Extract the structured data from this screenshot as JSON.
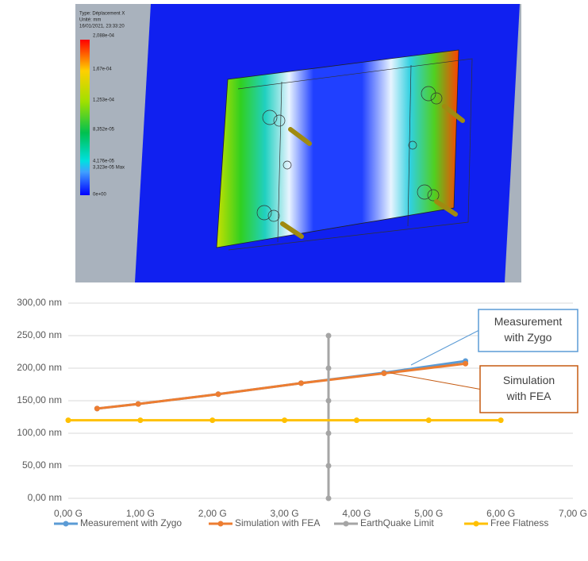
{
  "fea_legend": {
    "header": [
      "Type: Déplacement X",
      "Unité: mm",
      "16/01/2021, 23:33:20"
    ],
    "scale_labels": [
      "2,088e-04",
      "1,67e-04",
      "1,253e-04",
      "8,352e-05",
      "4,176e-05",
      "3,323e-05 Max",
      "0e+00"
    ]
  },
  "chart_data": {
    "type": "line",
    "series": [
      {
        "name": "Measurement with Zygo",
        "color": "#5b9bd5",
        "x": [
          0.4,
          0.97,
          2.08,
          3.23,
          4.38,
          5.51
        ],
        "values": [
          138,
          145,
          160,
          177,
          193,
          211
        ]
      },
      {
        "name": "Simulation with FEA",
        "color": "#ed7d31",
        "x": [
          0.4,
          0.97,
          2.08,
          3.23,
          4.38,
          5.51
        ],
        "values": [
          138,
          145,
          160,
          177,
          192,
          207
        ]
      },
      {
        "name": "EarthQuake Limit",
        "color": "#a5a5a5",
        "x": [
          3.61,
          3.61,
          3.61,
          3.61,
          3.61,
          3.61
        ],
        "values": [
          0,
          50,
          100,
          150,
          200,
          250
        ]
      },
      {
        "name": "Free Flatness",
        "color": "#ffc000",
        "x": [
          0,
          1,
          2,
          3,
          4,
          5,
          6
        ],
        "values": [
          120,
          120,
          120,
          120,
          120,
          120,
          120
        ]
      }
    ],
    "xlim": [
      0,
      7
    ],
    "xticks": [
      {
        "value": 0,
        "label": "0,00 G"
      },
      {
        "value": 1,
        "label": "1,00 G"
      },
      {
        "value": 2,
        "label": "2,00 G"
      },
      {
        "value": 3,
        "label": "3,00 G"
      },
      {
        "value": 4,
        "label": "4,00 G"
      },
      {
        "value": 5,
        "label": "5,00 G"
      },
      {
        "value": 6,
        "label": "6,00 G"
      },
      {
        "value": 7,
        "label": "7,00 G"
      }
    ],
    "ylim": [
      0,
      300
    ],
    "yticks": [
      {
        "value": 0,
        "label": "0,00 nm"
      },
      {
        "value": 50,
        "label": "50,00 nm"
      },
      {
        "value": 100,
        "label": "100,00 nm"
      },
      {
        "value": 150,
        "label": "150,00 nm"
      },
      {
        "value": 200,
        "label": "200,00 nm"
      },
      {
        "value": 250,
        "label": "250,00 nm"
      },
      {
        "value": 300,
        "label": "300,00 nm"
      }
    ],
    "grid": true,
    "legend": "bottom",
    "annotations": [
      {
        "lines": [
          "Measurement",
          "with Zygo"
        ],
        "color": "#5b9bd5"
      },
      {
        "lines": [
          "Simulation",
          "with FEA"
        ],
        "color": "#c55a11"
      }
    ]
  }
}
